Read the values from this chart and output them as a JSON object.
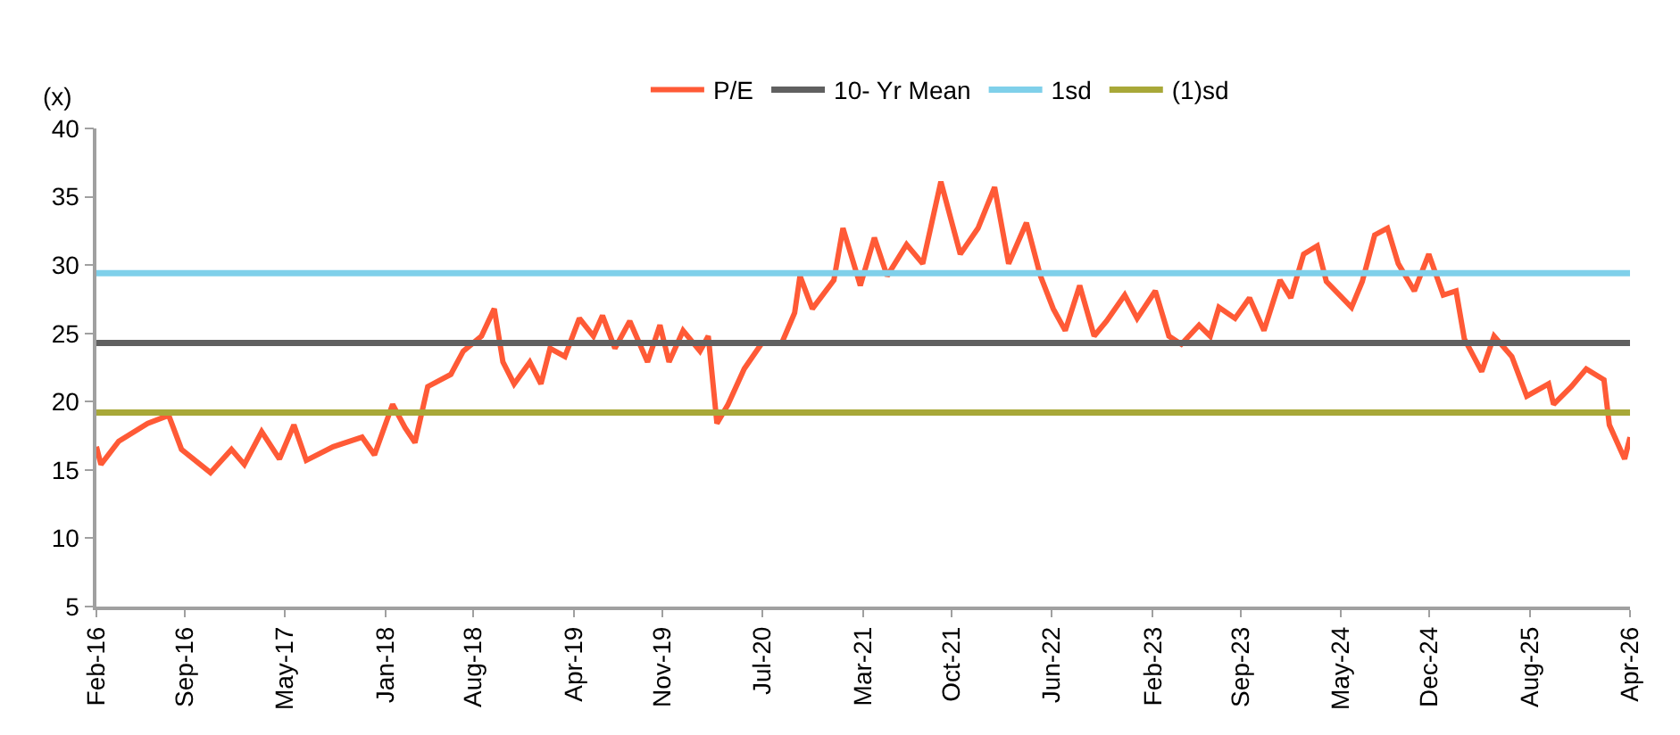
{
  "chart_data": {
    "type": "line",
    "ylabel": "(x)",
    "x": [
      "2016-02-01",
      "2016-02-12",
      "2016-03-26",
      "2016-06-04",
      "2016-07-25",
      "2016-08-25",
      "2016-11-03",
      "2016-12-24",
      "2017-01-24",
      "2017-03-07",
      "2017-04-19",
      "2017-05-24",
      "2017-06-23",
      "2017-08-27",
      "2017-11-05",
      "2017-12-05",
      "2018-01-18",
      "2018-02-17",
      "2018-03-13",
      "2018-04-13",
      "2018-06-08",
      "2018-07-08",
      "2018-08-21",
      "2018-09-21",
      "2018-10-12",
      "2018-11-08",
      "2018-12-16",
      "2019-01-12",
      "2019-02-03",
      "2019-03-11",
      "2019-04-15",
      "2019-05-19",
      "2019-06-10",
      "2019-07-10",
      "2019-08-15",
      "2019-09-27",
      "2019-10-27",
      "2019-11-18",
      "2019-12-22",
      "2020-02-01",
      "2020-02-21",
      "2020-03-13",
      "2020-04-09",
      "2020-05-18",
      "2020-06-30",
      "2020-08-17",
      "2020-09-17",
      "2020-09-30",
      "2020-10-30",
      "2020-12-21",
      "2021-01-12",
      "2021-02-03",
      "2021-02-23",
      "2021-03-29",
      "2021-04-29",
      "2021-06-15",
      "2021-07-24",
      "2021-09-06",
      "2021-10-23",
      "2021-12-05",
      "2022-01-14",
      "2022-02-17",
      "2022-04-01",
      "2022-05-05",
      "2022-06-05",
      "2022-07-04",
      "2022-08-08",
      "2022-09-12",
      "2022-10-12",
      "2022-11-25",
      "2022-12-25",
      "2023-02-07",
      "2023-03-12",
      "2023-04-11",
      "2023-05-24",
      "2023-06-20",
      "2023-07-11",
      "2023-08-19",
      "2023-09-23",
      "2023-10-28",
      "2023-12-06",
      "2024-01-01",
      "2024-02-01",
      "2024-03-05",
      "2024-03-27",
      "2024-05-27",
      "2024-06-22",
      "2024-07-22",
      "2024-08-22",
      "2024-09-17",
      "2024-10-26",
      "2024-11-30",
      "2025-01-04",
      "2025-02-04",
      "2025-02-24",
      "2025-04-07",
      "2025-05-07",
      "2025-06-19",
      "2025-07-25",
      "2025-09-16",
      "2025-09-28",
      "2025-11-10",
      "2025-12-16",
      "2026-01-28",
      "2026-02-10",
      "2026-03-19",
      "2026-04-01"
    ],
    "series": [
      {
        "name": "P/E",
        "color": "#ff5a36",
        "values": [
          16.7,
          15.4,
          17.1,
          18.4,
          19.0,
          16.5,
          14.8,
          16.5,
          15.4,
          17.8,
          15.8,
          18.3,
          15.7,
          16.7,
          17.4,
          16.1,
          19.8,
          18.1,
          17.0,
          21.1,
          22.0,
          23.7,
          24.8,
          26.8,
          22.9,
          21.3,
          22.9,
          21.3,
          23.9,
          23.3,
          26.1,
          24.8,
          26.3,
          23.9,
          25.9,
          22.9,
          25.6,
          22.9,
          25.2,
          23.7,
          24.8,
          18.4,
          19.8,
          22.4,
          24.3,
          24.3,
          26.5,
          29.2,
          26.8,
          28.9,
          32.7,
          30.5,
          28.5,
          32.0,
          29.2,
          31.5,
          30.1,
          36.1,
          30.8,
          32.7,
          35.7,
          30.1,
          33.1,
          29.2,
          26.8,
          25.2,
          28.5,
          24.8,
          25.9,
          27.8,
          26.1,
          28.1,
          24.8,
          24.2,
          25.6,
          24.8,
          26.9,
          26.1,
          27.6,
          25.2,
          28.9,
          27.6,
          30.8,
          31.4,
          28.8,
          26.9,
          28.8,
          32.2,
          32.7,
          30.1,
          28.1,
          30.8,
          27.8,
          28.1,
          24.6,
          22.2,
          24.8,
          23.3,
          20.4,
          21.3,
          19.8,
          21.1,
          22.4,
          21.6,
          18.3,
          15.8,
          17.4
        ]
      }
    ],
    "ref_lines": [
      {
        "axis": "y",
        "value": 24.3,
        "label": "10- Yr Mean",
        "color": "#606060"
      },
      {
        "axis": "y",
        "value": 29.4,
        "label": "1sd",
        "color": "#7fd0ea"
      },
      {
        "axis": "y",
        "value": 19.2,
        "label": "(1)sd",
        "color": "#a8a838"
      }
    ],
    "xlim": [
      "2016-02-01",
      "2026-04-01"
    ],
    "xticks": [
      {
        "value": "2016-02-01",
        "label": "Feb-16"
      },
      {
        "value": "2016-09-01",
        "label": "Sep-16"
      },
      {
        "value": "2017-05-01",
        "label": "May-17"
      },
      {
        "value": "2018-01-01",
        "label": "Jan-18"
      },
      {
        "value": "2018-08-01",
        "label": "Aug-18"
      },
      {
        "value": "2019-04-01",
        "label": "Apr-19"
      },
      {
        "value": "2019-11-01",
        "label": "Nov-19"
      },
      {
        "value": "2020-07-01",
        "label": "Jul-20"
      },
      {
        "value": "2021-03-01",
        "label": "Mar-21"
      },
      {
        "value": "2021-10-01",
        "label": "Oct-21"
      },
      {
        "value": "2022-06-01",
        "label": "Jun-22"
      },
      {
        "value": "2023-02-01",
        "label": "Feb-23"
      },
      {
        "value": "2023-09-01",
        "label": "Sep-23"
      },
      {
        "value": "2024-05-01",
        "label": "May-24"
      },
      {
        "value": "2024-12-01",
        "label": "Dec-24"
      },
      {
        "value": "2025-08-01",
        "label": "Aug-25"
      },
      {
        "value": "2026-04-01",
        "label": "Apr-26"
      }
    ],
    "ylim": [
      5,
      40
    ],
    "yticks": [
      5,
      10,
      15,
      20,
      25,
      30,
      35,
      40
    ],
    "legend": "top",
    "line_style": "solid"
  }
}
